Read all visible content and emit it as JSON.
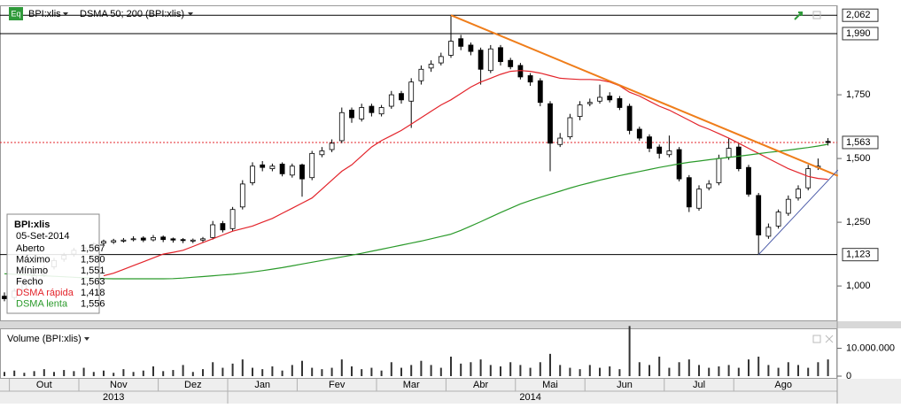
{
  "chart_data": {
    "type": "candlestick",
    "title": "BPI:xlis",
    "subtitle": "DSMA 50; 200 (BPI:xlis)",
    "categories": [
      null,
      "Out",
      null,
      null,
      null,
      null,
      null,
      null,
      "Nov",
      null,
      null,
      null,
      null,
      null,
      null,
      null,
      "Dez",
      null,
      null,
      null,
      null,
      null,
      null,
      "Jan",
      null,
      null,
      null,
      null,
      null,
      null,
      "Fev",
      null,
      null,
      null,
      null,
      null,
      null,
      null,
      "Mar",
      null,
      null,
      null,
      null,
      null,
      null,
      "Abr",
      null,
      null,
      null,
      null,
      null,
      null,
      "Mai",
      null,
      null,
      null,
      null,
      null,
      null,
      "Jun",
      null,
      null,
      null,
      null,
      null,
      null,
      null,
      "Jul",
      null,
      null,
      null,
      null,
      null,
      null,
      "Ago",
      null,
      null,
      null,
      null,
      null,
      null,
      null,
      null,
      null
    ],
    "year_categories": [
      "2013",
      null,
      null,
      null,
      null,
      null,
      null,
      null,
      null,
      null,
      null,
      null,
      null,
      null,
      null,
      null,
      null,
      null,
      null,
      null,
      null,
      null,
      null,
      "2014",
      null,
      null,
      null,
      null,
      null,
      null,
      null,
      null,
      null,
      null,
      null,
      null,
      null,
      null,
      null,
      null,
      null,
      null,
      null,
      null,
      null,
      null,
      null,
      null,
      null,
      null,
      null,
      null,
      null,
      null,
      null,
      null,
      null,
      null,
      null,
      null,
      null,
      null,
      null,
      null,
      null,
      null,
      null,
      null,
      null,
      null,
      null,
      null,
      null,
      null,
      null,
      null,
      null,
      null,
      null,
      null,
      null,
      null,
      null,
      null
    ],
    "open": [
      960,
      955,
      985,
      1015,
      1045,
      1075,
      1105,
      1125,
      1145,
      1155,
      1168,
      1172,
      1176,
      1182,
      1188,
      1181,
      1192,
      1185,
      1182,
      1176,
      1180,
      1190,
      1245,
      1225,
      1310,
      1405,
      1475,
      1460,
      1478,
      1435,
      1475,
      1425,
      1515,
      1535,
      1570,
      1690,
      1655,
      1705,
      1675,
      1705,
      1755,
      1725,
      1805,
      1855,
      1875,
      1905,
      1970,
      1945,
      1925,
      1845,
      1935,
      1885,
      1865,
      1825,
      1805,
      1715,
      1555,
      1585,
      1665,
      1715,
      1725,
      1745,
      1735,
      1705,
      1615,
      1585,
      1545,
      1515,
      1535,
      1425,
      1305,
      1385,
      1405,
      1505,
      1545,
      1465,
      1355,
      1195,
      1235,
      1285,
      1345,
      1385,
      1465,
      1567
    ],
    "high": [
      975,
      990,
      1020,
      1050,
      1080,
      1110,
      1130,
      1150,
      1160,
      1172,
      1182,
      1185,
      1188,
      1195,
      1195,
      1200,
      1198,
      1190,
      1188,
      1186,
      1192,
      1255,
      1255,
      1310,
      1415,
      1485,
      1490,
      1480,
      1485,
      1480,
      1480,
      1530,
      1545,
      1575,
      1700,
      1700,
      1715,
      1715,
      1710,
      1765,
      1765,
      1815,
      1865,
      1885,
      1915,
      2062,
      1985,
      1955,
      1935,
      1945,
      1945,
      1895,
      1875,
      1835,
      1815,
      1725,
      1600,
      1675,
      1725,
      1735,
      1790,
      1760,
      1745,
      1715,
      1625,
      1595,
      1555,
      1590,
      1545,
      1435,
      1395,
      1415,
      1515,
      1580,
      1560,
      1475,
      1365,
      1245,
      1300,
      1355,
      1395,
      1475,
      1500,
      1580
    ],
    "low": [
      940,
      945,
      975,
      1005,
      1035,
      1065,
      1095,
      1115,
      1135,
      1150,
      1160,
      1165,
      1170,
      1175,
      1172,
      1175,
      1172,
      1170,
      1168,
      1168,
      1172,
      1182,
      1210,
      1215,
      1300,
      1395,
      1450,
      1450,
      1430,
      1425,
      1350,
      1415,
      1505,
      1525,
      1560,
      1640,
      1645,
      1665,
      1665,
      1695,
      1715,
      1620,
      1790,
      1840,
      1865,
      1895,
      1925,
      1905,
      1790,
      1835,
      1865,
      1850,
      1810,
      1785,
      1705,
      1450,
      1545,
      1575,
      1650,
      1705,
      1715,
      1720,
      1690,
      1595,
      1570,
      1525,
      1500,
      1505,
      1410,
      1290,
      1295,
      1375,
      1395,
      1495,
      1450,
      1350,
      1123,
      1185,
      1225,
      1275,
      1335,
      1375,
      1455,
      1551
    ],
    "close": [
      950,
      980,
      1010,
      1040,
      1070,
      1100,
      1120,
      1140,
      1150,
      1165,
      1175,
      1178,
      1180,
      1185,
      1180,
      1190,
      1182,
      1180,
      1178,
      1180,
      1185,
      1240,
      1220,
      1300,
      1400,
      1470,
      1465,
      1470,
      1440,
      1470,
      1420,
      1520,
      1530,
      1560,
      1680,
      1660,
      1700,
      1680,
      1700,
      1750,
      1730,
      1800,
      1850,
      1870,
      1900,
      1960,
      1940,
      1920,
      1850,
      1930,
      1880,
      1860,
      1820,
      1800,
      1720,
      1560,
      1580,
      1660,
      1710,
      1720,
      1740,
      1730,
      1700,
      1610,
      1580,
      1540,
      1520,
      1530,
      1420,
      1310,
      1380,
      1400,
      1500,
      1540,
      1460,
      1360,
      1200,
      1230,
      1290,
      1340,
      1380,
      1460,
      1470,
      1563
    ],
    "series": [
      {
        "name": "DSMA rápida",
        "color": "#e3242b",
        "value_label": "1,418",
        "values": [
          null,
          null,
          null,
          null,
          null,
          null,
          null,
          null,
          null,
          null,
          1040,
          1050,
          1065,
          1080,
          1095,
          1110,
          1125,
          1132,
          1140,
          1155,
          1170,
          1185,
          1200,
          1215,
          1225,
          1235,
          1250,
          1265,
          1285,
          1305,
          1325,
          1345,
          1380,
          1415,
          1450,
          1475,
          1510,
          1545,
          1570,
          1590,
          1610,
          1635,
          1660,
          1685,
          1710,
          1730,
          1755,
          1780,
          1800,
          1815,
          1830,
          1842,
          1845,
          1842,
          1835,
          1825,
          1815,
          1812,
          1810,
          1810,
          1808,
          1800,
          1785,
          1760,
          1745,
          1725,
          1705,
          1690,
          1670,
          1650,
          1630,
          1615,
          1598,
          1580,
          1560,
          1540,
          1520,
          1500,
          1480,
          1460,
          1445,
          1430,
          1422,
          1418
        ]
      },
      {
        "name": "DSMA lenta",
        "color": "#2a9a2a",
        "value_label": "1,556",
        "values": [
          1048,
          1046,
          1044,
          1042,
          1040,
          1038,
          1036,
          1034,
          1032,
          1030,
          1029,
          1028,
          1028,
          1028,
          1028,
          1028,
          1028,
          1029,
          1031,
          1034,
          1037,
          1040,
          1043,
          1046,
          1050,
          1055,
          1060,
          1066,
          1072,
          1079,
          1086,
          1093,
          1100,
          1107,
          1114,
          1121,
          1128,
          1136,
          1144,
          1152,
          1160,
          1168,
          1176,
          1185,
          1194,
          1203,
          1218,
          1235,
          1252,
          1270,
          1288,
          1305,
          1322,
          1335,
          1348,
          1360,
          1372,
          1384,
          1395,
          1405,
          1415,
          1424,
          1433,
          1441,
          1449,
          1457,
          1465,
          1472,
          1479,
          1485,
          1490,
          1495,
          1500,
          1504,
          1509,
          1514,
          1519,
          1524,
          1528,
          1533,
          1538,
          1543,
          1549,
          1556
        ]
      }
    ],
    "ylim": [
      865,
      2094
    ],
    "yticks": [
      {
        "value": 1000,
        "label": "1,000"
      },
      {
        "value": 1250,
        "label": "1,250"
      },
      {
        "value": 1500,
        "label": "1,500"
      },
      {
        "value": 1750,
        "label": "1,750"
      }
    ],
    "grid": false,
    "hlines": [
      {
        "value": 2062,
        "label": "2,062",
        "color": "#000000"
      },
      {
        "value": 1990,
        "label": "1,990",
        "color": "#000000"
      },
      {
        "value": 1563,
        "label": "1,563",
        "color": "#e3242b"
      },
      {
        "value": 1123,
        "label": "1,123",
        "color": "#000000"
      }
    ],
    "trendlines": [
      {
        "color": "#ef7d1a",
        "x": [
          45,
          84
        ],
        "y": [
          2062,
          1432
        ]
      },
      {
        "color": "#4a5aa8",
        "x": [
          76,
          84
        ],
        "y": [
          1123,
          1455
        ]
      }
    ],
    "info": {
      "title": "BPI:xlis",
      "date": "05-Set-2014",
      "rows": [
        {
          "label": "Aberto",
          "value": "1,567"
        },
        {
          "label": "Máximo",
          "value": "1,580"
        },
        {
          "label": "Mínimo",
          "value": "1,551"
        },
        {
          "label": "Fecho",
          "value": "1,563"
        }
      ]
    },
    "volume": {
      "title": "Volume (BPI:xlis)",
      "color": "#333333",
      "values": [
        1500000,
        2000000,
        1200000,
        1800000,
        2500000,
        1500000,
        2200000,
        1800000,
        3000000,
        1500000,
        2000000,
        1200000,
        2500000,
        1500000,
        2000000,
        3500000,
        1800000,
        2200000,
        4000000,
        1500000,
        2500000,
        5000000,
        3000000,
        4500000,
        6000000,
        3000000,
        2500000,
        3500000,
        2000000,
        4000000,
        5500000,
        3000000,
        2500000,
        3000000,
        6000000,
        3500000,
        2500000,
        3000000,
        2000000,
        5000000,
        3000000,
        4000000,
        5500000,
        4000000,
        3000000,
        7000000,
        4500000,
        5000000,
        6000000,
        4000000,
        3500000,
        5000000,
        4000000,
        3000000,
        5000000,
        8000000,
        4000000,
        3000000,
        2500000,
        4000000,
        3000000,
        3500000,
        2500000,
        18000000,
        5000000,
        4000000,
        7000000,
        3000000,
        5000000,
        6000000,
        4000000,
        3000000,
        3500000,
        4000000,
        3000000,
        6000000,
        7000000,
        4000000,
        3000000,
        5000000,
        4000000,
        3000000,
        5000000,
        6000000
      ],
      "ylim": [
        0,
        18750000
      ],
      "yticks": [
        {
          "value": 10000000,
          "label": "10.000.000"
        },
        0
      ]
    }
  }
}
